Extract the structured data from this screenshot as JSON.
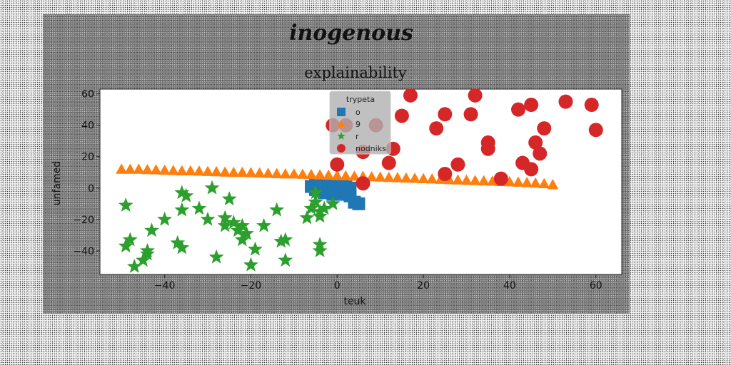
{
  "chart_data": {
    "type": "scatter",
    "suptitle": "inogenous",
    "title": "explainability",
    "xlabel": "teuk",
    "ylabel": "unfamed",
    "xlim": [
      -55,
      66
    ],
    "ylim": [
      -55,
      63
    ],
    "xticks": [
      -40,
      -20,
      0,
      20,
      40,
      60
    ],
    "yticks": [
      -40,
      -20,
      0,
      20,
      40,
      60
    ],
    "grid": false,
    "legend": {
      "title": "trypeta",
      "placement": "upper-center"
    },
    "series": [
      {
        "name": "o",
        "marker": "square",
        "color": "#1f77b4",
        "points": [
          [
            -6,
            1
          ],
          [
            -5,
            2
          ],
          [
            -4,
            0
          ],
          [
            -3,
            1
          ],
          [
            -2,
            2
          ],
          [
            -1,
            1
          ],
          [
            0,
            2
          ],
          [
            1,
            0
          ],
          [
            2,
            1
          ],
          [
            3,
            0
          ],
          [
            -5,
            -1
          ],
          [
            -4,
            -2
          ],
          [
            -3,
            -3
          ],
          [
            -2,
            -1
          ],
          [
            -1,
            -4
          ],
          [
            0,
            -3
          ],
          [
            1,
            -2
          ],
          [
            2,
            -4
          ],
          [
            3,
            -5
          ],
          [
            4,
            -9
          ],
          [
            5,
            -10
          ]
        ]
      },
      {
        "name": "9",
        "marker": "triangle",
        "color": "#ff7f0e",
        "points": [
          [
            -50,
            12
          ],
          [
            -48,
            12
          ],
          [
            -46,
            12
          ],
          [
            -44,
            11.8
          ],
          [
            -42,
            11.6
          ],
          [
            -40,
            11.4
          ],
          [
            -38,
            11.2
          ],
          [
            -36,
            11
          ],
          [
            -34,
            11
          ],
          [
            -32,
            10.8
          ],
          [
            -30,
            10.6
          ],
          [
            -28,
            10.4
          ],
          [
            -26,
            10.2
          ],
          [
            -24,
            10
          ],
          [
            -22,
            10
          ],
          [
            -20,
            9.8
          ],
          [
            -18,
            9.6
          ],
          [
            -16,
            9.4
          ],
          [
            -14,
            9.2
          ],
          [
            -12,
            9
          ],
          [
            -10,
            9
          ],
          [
            -8,
            8.8
          ],
          [
            -6,
            8.6
          ],
          [
            -4,
            8.4
          ],
          [
            -2,
            8.2
          ],
          [
            0,
            8
          ],
          [
            2,
            7.8
          ],
          [
            4,
            7.6
          ],
          [
            6,
            7.4
          ],
          [
            8,
            7.2
          ],
          [
            10,
            7
          ],
          [
            12,
            6.8
          ],
          [
            14,
            6.6
          ],
          [
            16,
            6.4
          ],
          [
            18,
            6.2
          ],
          [
            20,
            6
          ],
          [
            22,
            5.8
          ],
          [
            24,
            5.6
          ],
          [
            26,
            5.4
          ],
          [
            28,
            5.2
          ],
          [
            30,
            5
          ],
          [
            32,
            4.8
          ],
          [
            34,
            4.6
          ],
          [
            36,
            4.4
          ],
          [
            38,
            4.2
          ],
          [
            40,
            4
          ],
          [
            42,
            3.8
          ],
          [
            44,
            3.5
          ],
          [
            46,
            3.2
          ],
          [
            48,
            2.8
          ],
          [
            50,
            2.2
          ]
        ]
      },
      {
        "name": "r",
        "marker": "star",
        "color": "#2ca02c",
        "points": [
          [
            -49,
            -11
          ],
          [
            -49,
            -37
          ],
          [
            -48,
            -33
          ],
          [
            -47,
            -50
          ],
          [
            -45,
            -46
          ],
          [
            -44,
            -42
          ],
          [
            -44,
            -40
          ],
          [
            -43,
            -27
          ],
          [
            -40,
            -20
          ],
          [
            -37,
            -35
          ],
          [
            -36,
            -14
          ],
          [
            -36,
            -38
          ],
          [
            -36,
            -3
          ],
          [
            -35,
            -5
          ],
          [
            -32,
            -13
          ],
          [
            -30,
            -20
          ],
          [
            -29,
            0
          ],
          [
            -28,
            -44
          ],
          [
            -26,
            -19
          ],
          [
            -26,
            -24
          ],
          [
            -25,
            -7
          ],
          [
            -24,
            -22
          ],
          [
            -23,
            -27
          ],
          [
            -22,
            -33
          ],
          [
            -22,
            -24
          ],
          [
            -21,
            -29
          ],
          [
            -20,
            -49
          ],
          [
            -19,
            -39
          ],
          [
            -17,
            -24
          ],
          [
            -14,
            -14
          ],
          [
            -13,
            -34
          ],
          [
            -12,
            -33
          ],
          [
            -12,
            -46
          ],
          [
            -7,
            -19
          ],
          [
            -6,
            -13
          ],
          [
            -5,
            -3
          ],
          [
            -5,
            -9
          ],
          [
            -4,
            -18
          ],
          [
            -4,
            -15
          ],
          [
            -4,
            -36
          ],
          [
            -4,
            -40
          ],
          [
            -3,
            -13
          ],
          [
            -1,
            -10
          ]
        ]
      },
      {
        "name": "nodniks",
        "marker": "circle",
        "color": "#d62728",
        "points": [
          [
            -1,
            40
          ],
          [
            0,
            15
          ],
          [
            2,
            40
          ],
          [
            6,
            23
          ],
          [
            6,
            3
          ],
          [
            9,
            40
          ],
          [
            12,
            16
          ],
          [
            13,
            25
          ],
          [
            15,
            46
          ],
          [
            17,
            59
          ],
          [
            23,
            38
          ],
          [
            25,
            47
          ],
          [
            25,
            9
          ],
          [
            28,
            15
          ],
          [
            31,
            47
          ],
          [
            32,
            59
          ],
          [
            35,
            29
          ],
          [
            35,
            25
          ],
          [
            38,
            6
          ],
          [
            42,
            50
          ],
          [
            43,
            16
          ],
          [
            45,
            53
          ],
          [
            45,
            12
          ],
          [
            46,
            29
          ],
          [
            47,
            22
          ],
          [
            48,
            38
          ],
          [
            53,
            55
          ],
          [
            59,
            53
          ],
          [
            60,
            37
          ]
        ]
      }
    ]
  }
}
